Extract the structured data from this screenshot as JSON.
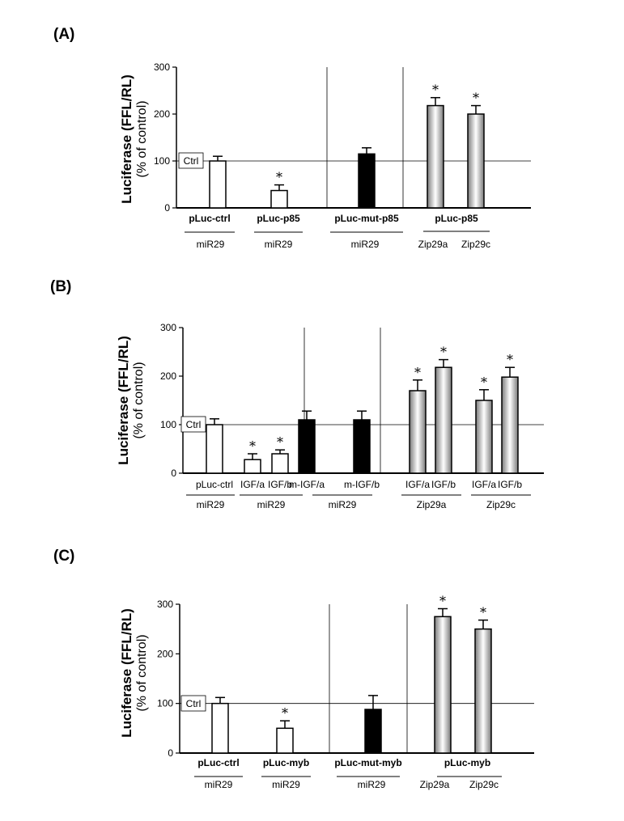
{
  "colors": {
    "open": "#ffffff",
    "solid": "#000000",
    "axis": "#000000"
  },
  "chart_data": [
    {
      "type": "bar",
      "panel_label": "(A)",
      "ylabel": "Luciferase (FFL/RL)",
      "ylabel_sub": "(% of control)",
      "ylim": [
        0,
        300
      ],
      "yticks": [
        "0",
        "100",
        "200",
        "300"
      ],
      "reference_label": "Ctrl",
      "reference_value": 100,
      "bars": [
        {
          "value": 100,
          "error": 10,
          "style": "open",
          "sig": false
        },
        {
          "value": 37,
          "error": 12,
          "style": "open",
          "sig": true
        },
        {
          "value": 115,
          "error": 13,
          "style": "solid",
          "sig": false
        },
        {
          "value": 218,
          "error": 17,
          "style": "gradient",
          "sig": true
        },
        {
          "value": 200,
          "error": 18,
          "style": "gradient",
          "sig": true
        }
      ],
      "star": "*",
      "groups": [
        {
          "label": "pLuc-ctrl",
          "bold": true
        },
        {
          "label": "pLuc-p85",
          "bold": true
        },
        {
          "label": "pLuc-mut-p85",
          "bold": true
        },
        {
          "label": "pLuc-p85",
          "bold": true
        }
      ],
      "sublabels": [
        "miR29",
        "miR29",
        "miR29",
        "Zip29a",
        "Zip29c"
      ]
    },
    {
      "type": "bar",
      "panel_label": "(B)",
      "ylabel": "Luciferase (FFL/RL)",
      "ylabel_sub": "(% of control)",
      "ylim": [
        0,
        300
      ],
      "yticks": [
        "0",
        "100",
        "200",
        "300"
      ],
      "reference_label": "Ctrl",
      "reference_value": 100,
      "bars": [
        {
          "value": 100,
          "error": 12,
          "style": "open",
          "sig": false
        },
        {
          "value": 28,
          "error": 12,
          "style": "open",
          "sig": true
        },
        {
          "value": 40,
          "error": 8,
          "style": "open",
          "sig": true
        },
        {
          "value": 110,
          "error": 18,
          "style": "solid",
          "sig": false
        },
        {
          "value": 110,
          "error": 18,
          "style": "solid",
          "sig": false
        },
        {
          "value": 170,
          "error": 22,
          "style": "gradient",
          "sig": true
        },
        {
          "value": 218,
          "error": 16,
          "style": "gradient",
          "sig": true
        },
        {
          "value": 150,
          "error": 22,
          "style": "gradient",
          "sig": true
        },
        {
          "value": 198,
          "error": 20,
          "style": "gradient",
          "sig": true
        }
      ],
      "star": "*",
      "barlabels": [
        "pLuc-ctrl",
        "IGF/a",
        "IGF/b",
        "m-IGF/a",
        "m-IGF/b",
        "IGF/a",
        "IGF/b",
        "IGF/a",
        "IGF/b"
      ],
      "groups": [
        {
          "label": "miR29",
          "bold": false
        },
        {
          "label": "miR29",
          "bold": false
        },
        {
          "label": "miR29",
          "bold": false
        },
        {
          "label": "Zip29a",
          "bold": false
        },
        {
          "label": "Zip29c",
          "bold": false
        }
      ]
    },
    {
      "type": "bar",
      "panel_label": "(C)",
      "ylabel": "Luciferase (FFL/RL)",
      "ylabel_sub": "(% of control)",
      "ylim": [
        0,
        300
      ],
      "yticks": [
        "0",
        "100",
        "200",
        "300"
      ],
      "reference_label": "Ctrl",
      "reference_value": 100,
      "bars": [
        {
          "value": 100,
          "error": 12,
          "style": "open",
          "sig": false
        },
        {
          "value": 50,
          "error": 15,
          "style": "open",
          "sig": true
        },
        {
          "value": 88,
          "error": 28,
          "style": "solid",
          "sig": false
        },
        {
          "value": 275,
          "error": 16,
          "style": "gradient",
          "sig": true
        },
        {
          "value": 250,
          "error": 18,
          "style": "gradient",
          "sig": true
        }
      ],
      "star": "*",
      "groups": [
        {
          "label": "pLuc-ctrl",
          "bold": true
        },
        {
          "label": "pLuc-myb",
          "bold": true
        },
        {
          "label": "pLuc-mut-myb",
          "bold": true
        },
        {
          "label": "pLuc-myb",
          "bold": true
        }
      ],
      "sublabels": [
        "miR29",
        "miR29",
        "miR29",
        "Zip29a",
        "Zip29c"
      ]
    }
  ]
}
